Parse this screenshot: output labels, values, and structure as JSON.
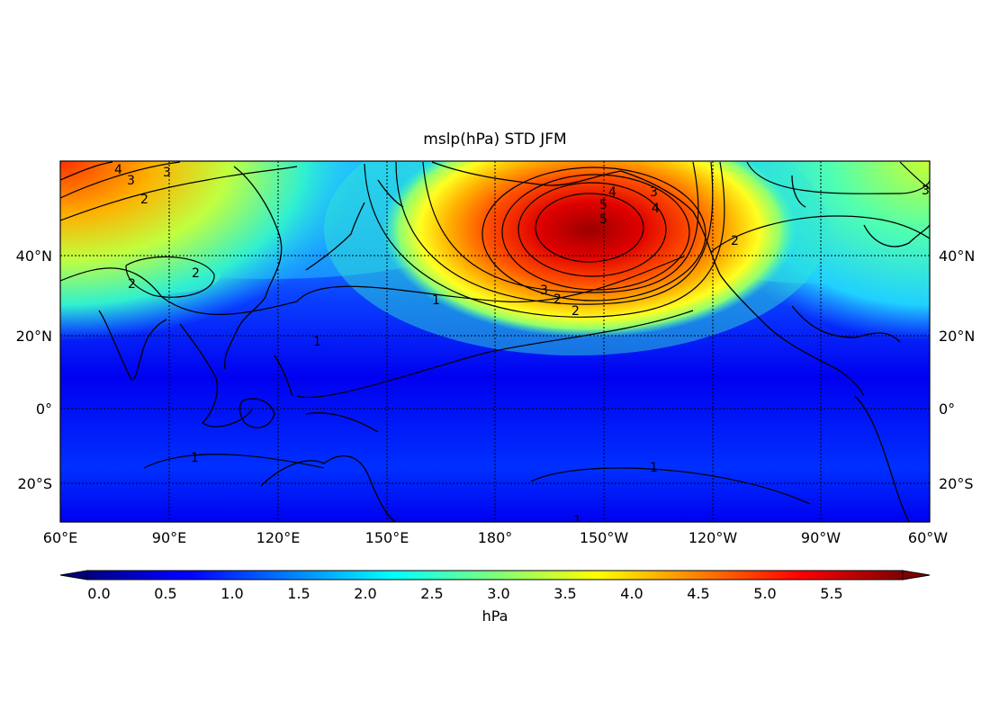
{
  "map": {
    "title": "mslp(hPa) STD JFM",
    "lon_labels": [
      "60°E",
      "90°E",
      "120°E",
      "150°E",
      "180°",
      "150°W",
      "120°W",
      "90°W",
      "60°W"
    ],
    "lat_labels": [
      "40°N",
      "20°N",
      "0°",
      "20°S"
    ],
    "colormap": "jet"
  },
  "colorbar": {
    "ticks": [
      "0.0",
      "0.5",
      "1.0",
      "1.5",
      "2.0",
      "2.5",
      "3.0",
      "3.5",
      "4.0",
      "4.5",
      "5.0",
      "5.5"
    ],
    "label": "hPa"
  },
  "contour_labels": [
    {
      "text": "4"
    },
    {
      "text": "3"
    },
    {
      "text": "3"
    },
    {
      "text": "2"
    },
    {
      "text": "2"
    },
    {
      "text": "2"
    },
    {
      "text": "1"
    },
    {
      "text": "1"
    },
    {
      "text": "3"
    },
    {
      "text": "2"
    },
    {
      "text": "2"
    },
    {
      "text": "4"
    },
    {
      "text": "5"
    },
    {
      "text": "5"
    },
    {
      "text": "3"
    },
    {
      "text": "4"
    },
    {
      "text": "2"
    },
    {
      "text": "1"
    },
    {
      "text": "1"
    },
    {
      "text": "1"
    },
    {
      "text": "3"
    }
  ]
}
